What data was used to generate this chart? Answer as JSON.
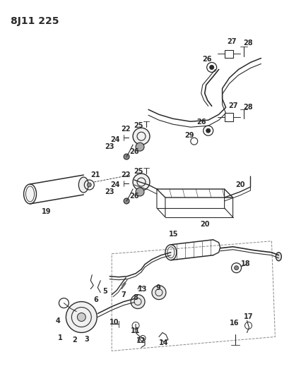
{
  "title": "8J11 225",
  "bg_color": "#ffffff",
  "line_color": "#2a2a2a",
  "title_fontsize": 10,
  "label_fontsize": 7,
  "fig_width": 4.09,
  "fig_height": 5.33,
  "dpi": 100
}
